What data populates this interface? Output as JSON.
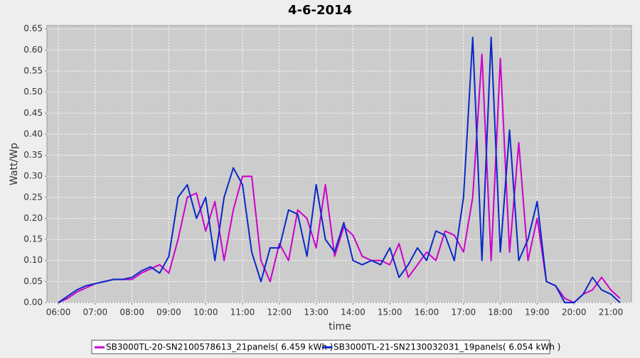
{
  "chart_data": {
    "type": "line",
    "title": "4-6-2014",
    "x_label": "time",
    "y_label": "Watt/Wp",
    "x": [
      6.0,
      6.25,
      6.5,
      6.75,
      7.0,
      7.25,
      7.5,
      7.75,
      8.0,
      8.25,
      8.5,
      8.75,
      9.0,
      9.25,
      9.5,
      9.75,
      10.0,
      10.25,
      10.5,
      10.75,
      11.0,
      11.25,
      11.5,
      11.75,
      12.0,
      12.25,
      12.5,
      12.75,
      13.0,
      13.25,
      13.5,
      13.75,
      14.0,
      14.25,
      14.5,
      14.75,
      15.0,
      15.25,
      15.5,
      15.75,
      16.0,
      16.25,
      16.5,
      16.75,
      17.0,
      17.25,
      17.5,
      17.75,
      18.0,
      18.25,
      18.5,
      18.75,
      19.0,
      19.25,
      19.5,
      19.75,
      20.0,
      20.25,
      20.5,
      20.75,
      21.0,
      21.25
    ],
    "series": [
      {
        "name": "SB3000TL-20-SN2100578613_21panels( 6.459 kWh )",
        "color": "#cc00cc",
        "values": [
          0.0,
          0.01,
          0.025,
          0.035,
          0.045,
          0.05,
          0.055,
          0.055,
          0.055,
          0.07,
          0.08,
          0.09,
          0.07,
          0.15,
          0.25,
          0.26,
          0.17,
          0.24,
          0.1,
          0.22,
          0.3,
          0.3,
          0.1,
          0.05,
          0.14,
          0.1,
          0.22,
          0.2,
          0.13,
          0.28,
          0.11,
          0.18,
          0.16,
          0.11,
          0.1,
          0.1,
          0.09,
          0.14,
          0.06,
          0.09,
          0.12,
          0.1,
          0.17,
          0.16,
          0.12,
          0.25,
          0.59,
          0.1,
          0.58,
          0.12,
          0.38,
          0.1,
          0.2,
          0.05,
          0.04,
          0.01,
          0.0,
          0.02,
          0.03,
          0.06,
          0.03,
          0.01
        ]
      },
      {
        "name": "SB3000TL-21-SN2130032031_19panels( 6.054 kWh )",
        "color": "#0a28c8",
        "values": [
          0.0,
          0.015,
          0.03,
          0.04,
          0.045,
          0.05,
          0.055,
          0.055,
          0.06,
          0.075,
          0.085,
          0.07,
          0.11,
          0.25,
          0.28,
          0.2,
          0.25,
          0.1,
          0.25,
          0.32,
          0.28,
          0.12,
          0.05,
          0.13,
          0.13,
          0.22,
          0.21,
          0.11,
          0.28,
          0.15,
          0.12,
          0.19,
          0.1,
          0.09,
          0.1,
          0.09,
          0.13,
          0.06,
          0.09,
          0.13,
          0.1,
          0.17,
          0.16,
          0.1,
          0.25,
          0.63,
          0.1,
          0.63,
          0.12,
          0.41,
          0.1,
          0.15,
          0.24,
          0.05,
          0.04,
          0.0,
          0.0,
          0.02,
          0.06,
          0.03,
          0.02,
          0.0
        ]
      }
    ],
    "xlim": [
      5.69,
      21.56
    ],
    "xticks": [
      {
        "value": 6,
        "label": "06:00"
      },
      {
        "value": 7,
        "label": "07:00"
      },
      {
        "value": 8,
        "label": "08:00"
      },
      {
        "value": 9,
        "label": "09:00"
      },
      {
        "value": 10,
        "label": "10:00"
      },
      {
        "value": 11,
        "label": "11:00"
      },
      {
        "value": 12,
        "label": "12:00"
      },
      {
        "value": 13,
        "label": "13:00"
      },
      {
        "value": 14,
        "label": "14:00"
      },
      {
        "value": 15,
        "label": "15:00"
      },
      {
        "value": 16,
        "label": "16:00"
      },
      {
        "value": 17,
        "label": "17:00"
      },
      {
        "value": 18,
        "label": "18:00"
      },
      {
        "value": 19,
        "label": "19:00"
      },
      {
        "value": 20,
        "label": "20:00"
      },
      {
        "value": 21,
        "label": "21:00"
      }
    ],
    "ylim": [
      0,
      0.658
    ],
    "yticks": [
      {
        "value": 0,
        "label": "0.00"
      },
      0.05,
      {
        "value": 0.1,
        "label": "0.10"
      },
      0.15,
      {
        "value": 0.2,
        "label": "0.20"
      },
      0.25,
      {
        "value": 0.3,
        "label": "0.30"
      },
      0.35,
      {
        "value": 0.4,
        "label": "0.40"
      },
      0.45,
      {
        "value": 0.5,
        "label": "0.50"
      },
      0.55,
      {
        "value": 0.6,
        "label": "0.60"
      },
      0.65
    ],
    "grid": true
  }
}
